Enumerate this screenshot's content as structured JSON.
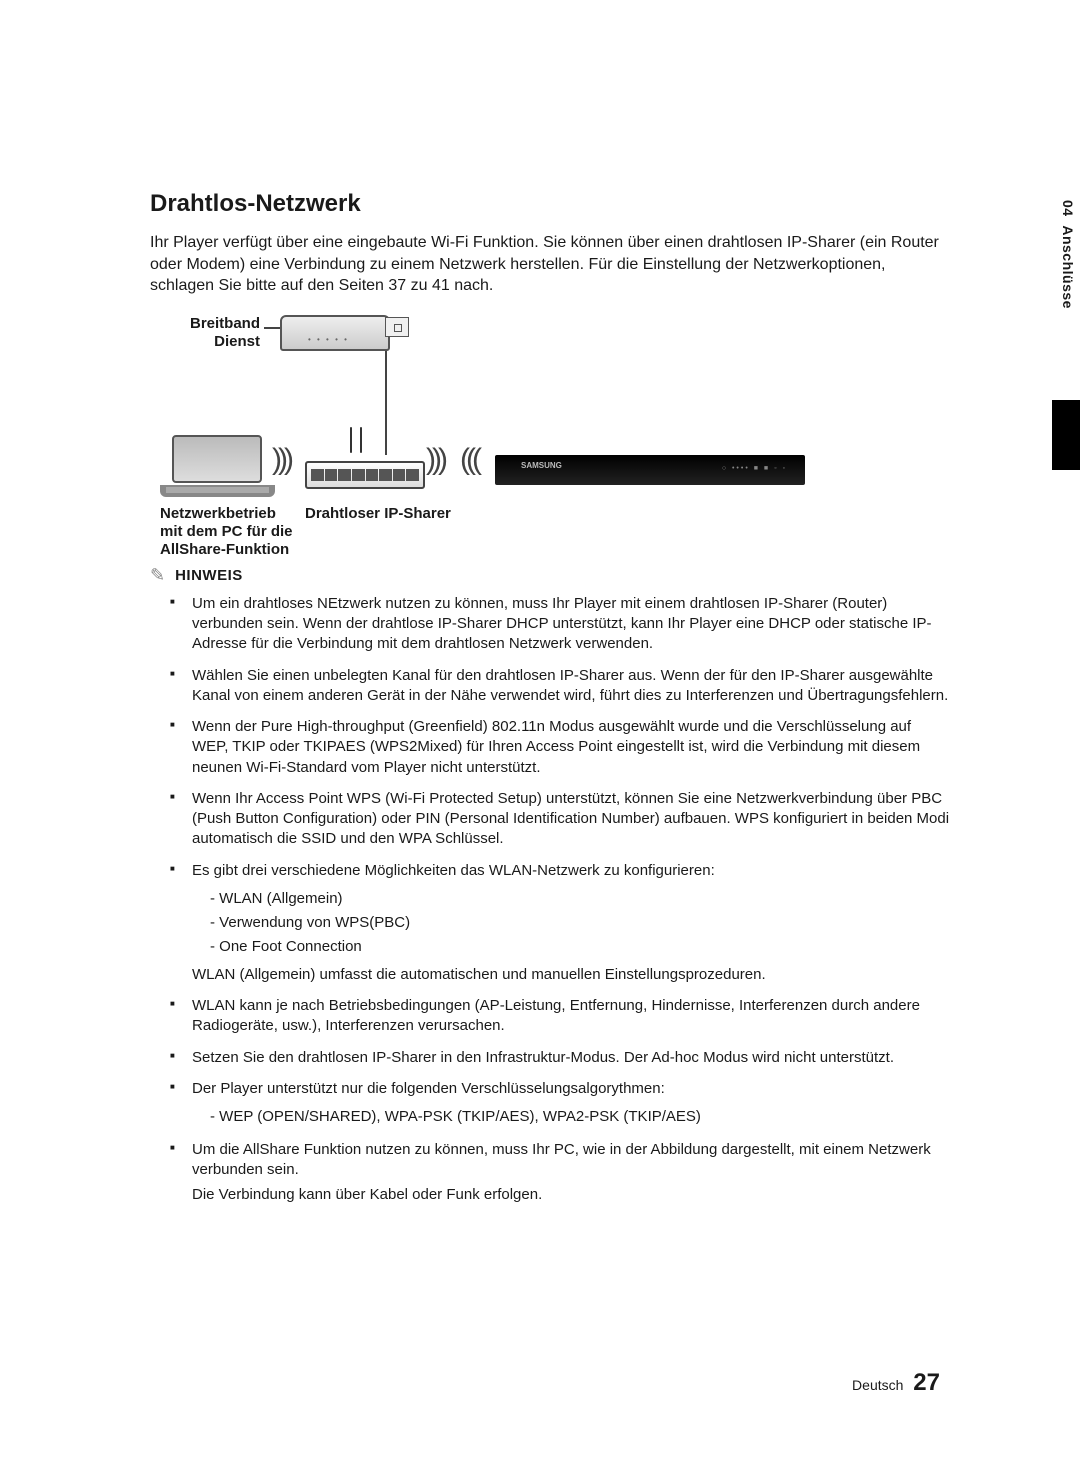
{
  "sidebar": {
    "section_no": "04",
    "section_name": "Anschlüsse"
  },
  "title": "Drahtlos-Netzwerk",
  "intro": "Ihr Player verfügt über eine eingebaute Wi-Fi Funktion. Sie können über einen drahtlosen IP-Sharer (ein Router oder Modem) eine Verbindung zu einem Netzwerk herstellen.\nFür die Einstellung der Netzwerkoptionen, schlagen Sie bitte auf den Seiten 37 zu 41 nach.",
  "diagram": {
    "broadband_label_l1": "Breitband",
    "broadband_label_l2": "Dienst",
    "pc_label_l1": "Netzwerkbetrieb",
    "pc_label_l2": "mit dem PC für die",
    "pc_label_l3": "AllShare-Funktion",
    "router_label": "Drahtloser IP-Sharer",
    "player_brand": "SAMSUNG"
  },
  "hinweis_label": "HINWEIS",
  "notes": [
    "Um ein drahtloses NEtzwerk nutzen zu können, muss Ihr Player mit einem drahtlosen IP-Sharer (Router) verbunden sein. Wenn der drahtlose IP-Sharer DHCP unterstützt, kann Ihr Player eine DHCP oder statische IP-Adresse für die Verbindung mit dem drahtlosen Netzwerk verwenden.",
    "Wählen Sie einen unbelegten Kanal für den drahtlosen IP-Sharer aus. Wenn der für den IP-Sharer ausgewählte Kanal von einem anderen Gerät in der Nähe verwendet wird, führt dies zu Interferenzen und Übertragungsfehlern.",
    "Wenn der Pure High-throughput (Greenfield) 802.11n Modus ausgewählt wurde und die Verschlüsselung auf WEP, TKIP oder TKIPAES (WPS2Mixed) für Ihren Access Point eingestellt ist, wird die Verbindung mit diesem neunen Wi-Fi-Standard vom Player nicht unterstützt.",
    "Wenn Ihr Access Point WPS (Wi-Fi Protected Setup) unterstützt, können Sie eine Netzwerkverbindung über PBC (Push Button Configuration) oder PIN (Personal Identification Number) aufbauen. WPS konfiguriert in beiden Modi automatisch die SSID und den WPA Schlüssel."
  ],
  "note5_lead": "Es gibt drei verschiedene Möglichkeiten das WLAN-Netzwerk zu konfigurieren:",
  "note5_items": [
    "WLAN (Allgemein)",
    "Verwendung von WPS(PBC)",
    "One Foot Connection"
  ],
  "note5_tail": "WLAN (Allgemein) umfasst die automatischen und manuellen Einstellungsprozeduren.",
  "note6": "WLAN kann je nach Betriebsbedingungen (AP-Leistung, Entfernung, Hindernisse, Interferenzen durch andere Radiogeräte, usw.), Interferenzen verursachen.",
  "note7": "Setzen Sie den drahtlosen IP-Sharer in den Infrastruktur-Modus. Der Ad-hoc Modus wird nicht unterstützt.",
  "note8_lead": "Der Player unterstützt nur die folgenden Verschlüsselungsalgorythmen:",
  "note8_items": [
    "WEP (OPEN/SHARED), WPA-PSK (TKIP/AES), WPA2-PSK (TKIP/AES)"
  ],
  "note9_l1": "Um die AllShare Funktion nutzen zu können, muss Ihr PC, wie in der Abbildung dargestellt, mit einem Netzwerk verbunden sein.",
  "note9_l2": "Die Verbindung kann über Kabel oder Funk erfolgen.",
  "footer": {
    "lang": "Deutsch",
    "page": "27"
  }
}
